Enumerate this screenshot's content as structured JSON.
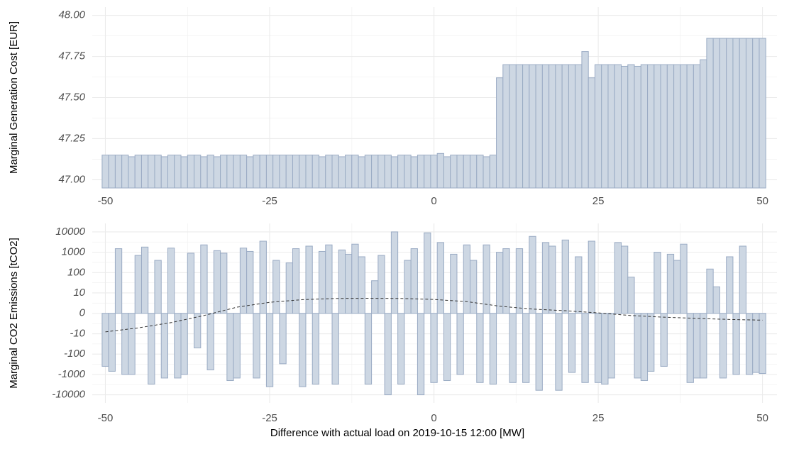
{
  "chart_data": [
    {
      "type": "bar",
      "y_label": "Marginal Generation Cost [EUR]",
      "color": "#cdd7e3",
      "edge_color": "#9aabc4",
      "grid": true,
      "x": [
        -50,
        -49,
        -48,
        -47,
        -46,
        -45,
        -44,
        -43,
        -42,
        -41,
        -40,
        -39,
        -38,
        -37,
        -36,
        -35,
        -34,
        -33,
        -32,
        -31,
        -30,
        -29,
        -28,
        -27,
        -26,
        -25,
        -24,
        -23,
        -22,
        -21,
        -20,
        -19,
        -18,
        -17,
        -16,
        -15,
        -14,
        -13,
        -12,
        -11,
        -10,
        -9,
        -8,
        -7,
        -6,
        -5,
        -4,
        -3,
        -2,
        -1,
        0,
        1,
        2,
        3,
        4,
        5,
        6,
        7,
        8,
        9,
        10,
        11,
        12,
        13,
        14,
        15,
        16,
        17,
        18,
        19,
        20,
        21,
        22,
        23,
        24,
        25,
        26,
        27,
        28,
        29,
        30,
        31,
        32,
        33,
        34,
        35,
        36,
        37,
        38,
        39,
        40,
        41,
        42,
        43,
        44,
        45,
        46,
        47,
        48,
        49,
        50
      ],
      "values": [
        47.15,
        47.15,
        47.15,
        47.15,
        47.14,
        47.15,
        47.15,
        47.15,
        47.15,
        47.14,
        47.15,
        47.15,
        47.14,
        47.15,
        47.15,
        47.14,
        47.15,
        47.14,
        47.15,
        47.15,
        47.15,
        47.15,
        47.14,
        47.15,
        47.15,
        47.15,
        47.15,
        47.15,
        47.15,
        47.15,
        47.15,
        47.15,
        47.15,
        47.14,
        47.15,
        47.15,
        47.14,
        47.15,
        47.15,
        47.14,
        47.15,
        47.15,
        47.15,
        47.15,
        47.14,
        47.15,
        47.15,
        47.14,
        47.15,
        47.15,
        47.15,
        47.16,
        47.14,
        47.15,
        47.15,
        47.15,
        47.15,
        47.15,
        47.14,
        47.15,
        47.62,
        47.7,
        47.7,
        47.7,
        47.7,
        47.7,
        47.7,
        47.7,
        47.7,
        47.7,
        47.7,
        47.7,
        47.7,
        47.78,
        47.62,
        47.7,
        47.7,
        47.7,
        47.7,
        47.69,
        47.7,
        47.69,
        47.7,
        47.7,
        47.7,
        47.7,
        47.7,
        47.7,
        47.7,
        47.7,
        47.7,
        47.73,
        47.86,
        47.86,
        47.86,
        47.86,
        47.86,
        47.86,
        47.86,
        47.86,
        47.86
      ],
      "xlim": [
        -52,
        52.2
      ],
      "xticks": [
        -50,
        -25,
        0,
        25,
        50
      ],
      "ylim": [
        46.95,
        48.05
      ],
      "yticks": [
        {
          "value": 47,
          "label": "47.00"
        },
        {
          "value": 47.25,
          "label": "47.25"
        },
        {
          "value": 47.5,
          "label": "47.50"
        },
        {
          "value": 47.75,
          "label": "47.75"
        },
        {
          "value": 48,
          "label": "48.00"
        }
      ]
    },
    {
      "type": "bar",
      "y_label": "Marginal CO2 Emissions [tCO2]",
      "x_label": "Difference with actual load on 2019-10-15 12:00 [MW]",
      "color": "#cdd7e3",
      "edge_color": "#9aabc4",
      "grid": true,
      "scale": "pseudo_log",
      "x": [
        -50,
        -49,
        -48,
        -47,
        -46,
        -45,
        -44,
        -43,
        -42,
        -41,
        -40,
        -39,
        -38,
        -37,
        -36,
        -35,
        -34,
        -33,
        -32,
        -31,
        -30,
        -29,
        -28,
        -27,
        -26,
        -25,
        -24,
        -23,
        -22,
        -21,
        -20,
        -19,
        -18,
        -17,
        -16,
        -15,
        -14,
        -13,
        -12,
        -11,
        -10,
        -9,
        -8,
        -7,
        -6,
        -5,
        -4,
        -3,
        -2,
        -1,
        0,
        1,
        2,
        3,
        4,
        5,
        6,
        7,
        8,
        9,
        10,
        11,
        12,
        13,
        14,
        15,
        16,
        17,
        18,
        19,
        20,
        21,
        22,
        23,
        24,
        25,
        26,
        27,
        28,
        29,
        30,
        31,
        32,
        33,
        34,
        35,
        36,
        37,
        38,
        39,
        40,
        41,
        42,
        43,
        44,
        45,
        46,
        47,
        48,
        49,
        50
      ],
      "values": [
        -400,
        -700,
        1500,
        -1000,
        -1000,
        700,
        1800,
        -3000,
        400,
        -1500,
        1600,
        -1500,
        -1000,
        900,
        -50,
        2300,
        -600,
        1200,
        900,
        -2000,
        -1500,
        1600,
        1100,
        -1500,
        3500,
        -4000,
        400,
        -300,
        300,
        1500,
        -4000,
        2000,
        -3000,
        1100,
        2300,
        -3000,
        1300,
        800,
        2500,
        600,
        -3000,
        40,
        700,
        -10000,
        10000,
        -3000,
        400,
        1500,
        -10000,
        9000,
        -2500,
        3000,
        -2000,
        800,
        -1000,
        2300,
        400,
        -2500,
        2300,
        -3000,
        1000,
        1500,
        -2500,
        1500,
        -2500,
        6000,
        -6000,
        3000,
        2000,
        -6000,
        4000,
        -800,
        600,
        -2500,
        3500,
        -2500,
        -3000,
        -1500,
        3000,
        2000,
        60,
        -1500,
        -2000,
        -700,
        1000,
        -400,
        800,
        400,
        2500,
        -2500,
        -1500,
        -1500,
        150,
        20,
        -1500,
        600,
        -1000,
        2000,
        -1000,
        -800,
        -900
      ],
      "line": {
        "x": [
          -50,
          -45,
          -40,
          -35,
          -30,
          -25,
          -20,
          -15,
          -10,
          -5,
          0,
          5,
          10,
          15,
          20,
          25,
          30,
          35,
          40,
          45,
          50
        ],
        "values": [
          -8,
          -5,
          -2.5,
          -0.5,
          1.5,
          3.2,
          4.5,
          5.2,
          5.3,
          5.2,
          4.6,
          3.5,
          1.8,
          1,
          0.6,
          0.1,
          -0.5,
          -0.9,
          -1.2,
          -1.5,
          -1.7
        ],
        "color": "#333333"
      },
      "xlim": [
        -52,
        52.2
      ],
      "xticks": [
        -50,
        -25,
        0,
        25,
        50
      ],
      "ylim": [
        -25000,
        26000
      ],
      "yticks": [
        -10000,
        -1000,
        -100,
        -10,
        0,
        10,
        100,
        1000,
        10000
      ]
    }
  ]
}
